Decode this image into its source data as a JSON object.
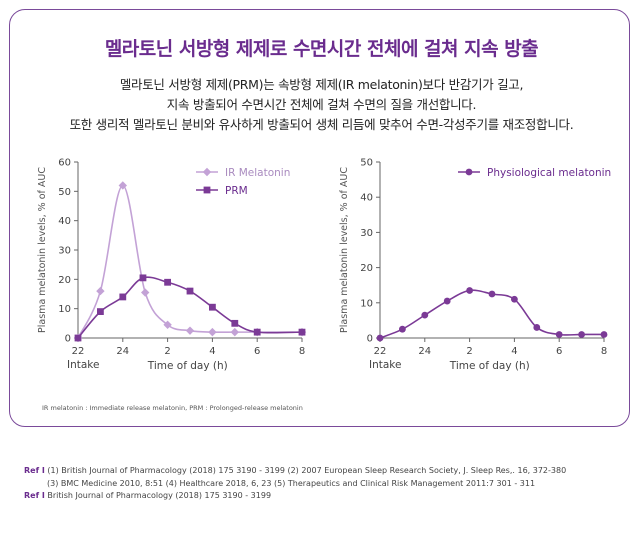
{
  "title": "멜라토닌 서방형 제제로 수면시간 전체에 걸쳐 지속 방출",
  "description": [
    "멜라토닌 서방형 제제(PRM)는 속방형 제제(IR melatonin)보다 반감기가 길고,",
    "지속 방출되어 수면시간 전체에 걸쳐 수면의 질을 개선합니다.",
    "또한 생리적 멜라토닌 분비와 유사하게 방출되어 생체 리듬에 맞추어 수면-각성주기를 재조정합니다."
  ],
  "colors": {
    "accent": "#6a2c8e",
    "prm": "#7b3a96",
    "ir": "#c3a2d6",
    "physio": "#7b3a96",
    "axis": "#666666"
  },
  "chart_data": [
    {
      "type": "line",
      "x": [
        "22",
        "23",
        "24",
        "1",
        "2",
        "3",
        "4",
        "5",
        "6",
        "8"
      ],
      "x_numeric": [
        22,
        23,
        24,
        25,
        26,
        27,
        28,
        29,
        30,
        32
      ],
      "xticks": [
        "22",
        "24",
        "2",
        "4",
        "6",
        "8"
      ],
      "xtick_values": [
        22,
        24,
        26,
        28,
        30,
        32
      ],
      "xlabel_start": "Intake",
      "xlabel": "Time of day (h)",
      "ylabel": "Plasma melatonin levels, % of AUC",
      "ylim": [
        0,
        60
      ],
      "yticks": [
        "0",
        "10",
        "20",
        "30",
        "40",
        "50",
        "60"
      ],
      "legend": "top-right",
      "series": [
        {
          "name": "IR Melatonin",
          "marker": "diamond",
          "x": [
            22,
            23,
            24,
            25,
            26,
            27,
            28,
            29,
            30,
            32
          ],
          "values": [
            0,
            16,
            52,
            15.5,
            4.5,
            2.5,
            2,
            2,
            2,
            2
          ]
        },
        {
          "name": "PRM",
          "marker": "square",
          "x": [
            22,
            23,
            24,
            24.9,
            26,
            27,
            28,
            29,
            30,
            32
          ],
          "values": [
            0,
            9,
            14,
            20.5,
            19,
            16,
            10.5,
            5,
            2,
            2
          ]
        }
      ]
    },
    {
      "type": "line",
      "x": [
        "22",
        "23",
        "24",
        "1",
        "2",
        "3",
        "4",
        "5",
        "6",
        "7",
        "8"
      ],
      "x_numeric": [
        22,
        23,
        24,
        25,
        26,
        27,
        28,
        29,
        30,
        31,
        32
      ],
      "xticks": [
        "22",
        "24",
        "2",
        "4",
        "6",
        "8"
      ],
      "xtick_values": [
        22,
        24,
        26,
        28,
        30,
        32
      ],
      "xlabel_start": "Intake",
      "xlabel": "Time of day (h)",
      "ylabel": "Plasma melatonin levels, % of AUC",
      "ylim": [
        0,
        50
      ],
      "yticks": [
        "0",
        "10",
        "20",
        "30",
        "40",
        "50"
      ],
      "legend": "top-right",
      "series": [
        {
          "name": "Physiological melatonin",
          "marker": "circle",
          "x": [
            22,
            23,
            24,
            25,
            26,
            27,
            28,
            29,
            30,
            31,
            32
          ],
          "values": [
            0,
            2.5,
            6.5,
            10.5,
            13.5,
            12.5,
            11,
            3,
            1,
            1,
            1
          ]
        }
      ]
    }
  ],
  "footnote": "IR melatonin : Immediate release melatonin, PRM : Prolonged-release melatonin",
  "refs": [
    {
      "tag": "Ref I",
      "text": " (1) British Journal of Pharmacology (2018) 175 3190 - 3199  (2) 2007 European Sleep Research Society, J. Sleep Res,. 16, 372-380"
    },
    {
      "tag": "",
      "text": "(3) BMC Medicine 2010, 8:51  (4) Healthcare 2018, 6, 23  (5) Therapeutics and Clinical Risk Management 2011:7 301 - 311"
    },
    {
      "tag": "Ref I",
      "text": " British Journal of Pharmacology (2018) 175 3190 - 3199"
    }
  ]
}
